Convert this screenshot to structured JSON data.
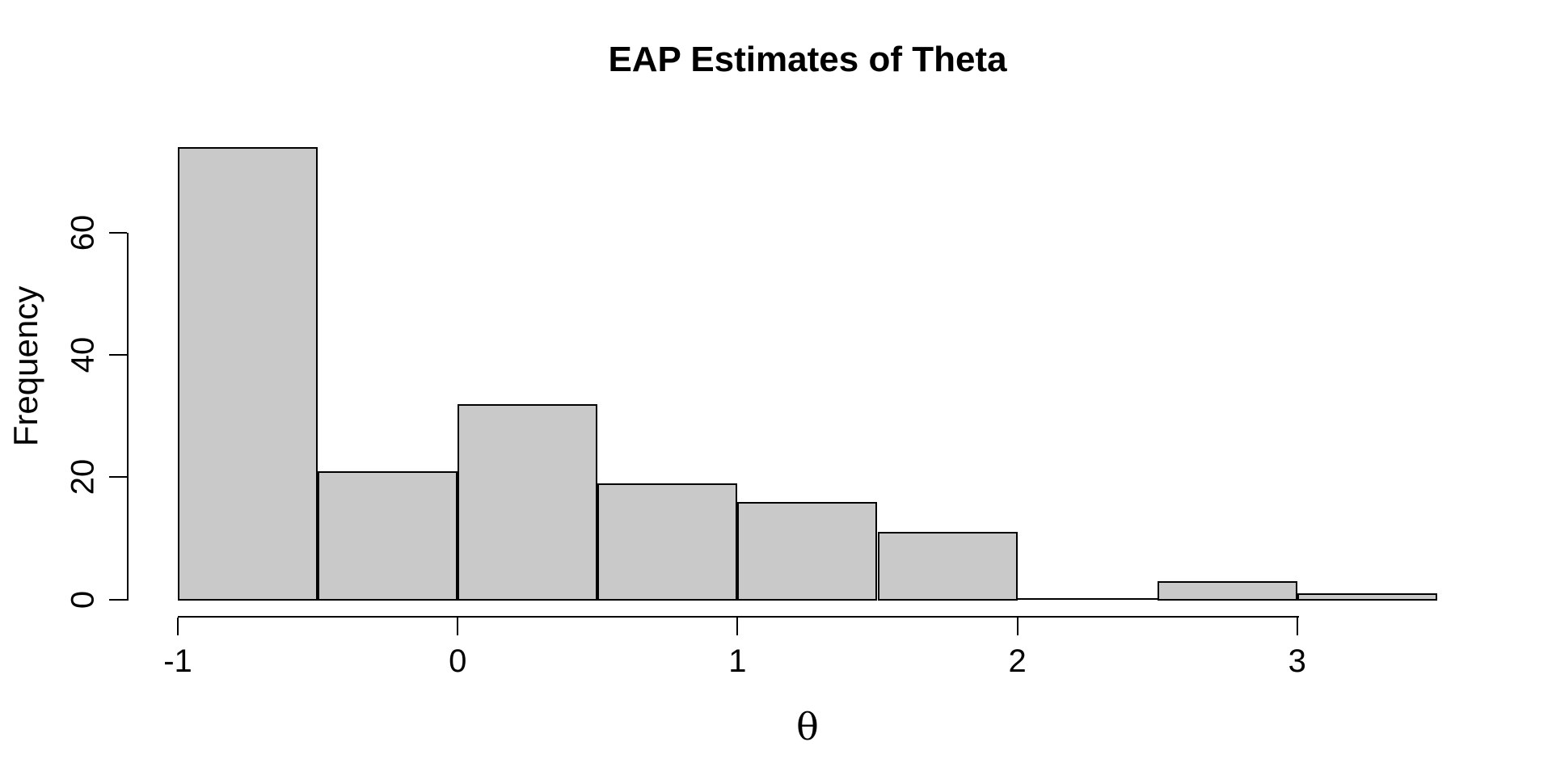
{
  "chart_data": {
    "type": "histogram",
    "title": "EAP Estimates of Theta",
    "xlabel": "θ",
    "ylabel": "Frequency",
    "bin_edges": [
      -1.0,
      -0.5,
      0.0,
      0.5,
      1.0,
      1.5,
      2.0,
      2.5,
      3.0,
      3.5
    ],
    "counts": [
      74,
      21,
      32,
      19,
      16,
      11,
      0,
      3,
      1
    ],
    "x_ticks": [
      -1,
      0,
      1,
      2,
      3
    ],
    "x_tick_labels": [
      "-1",
      "0",
      "1",
      "2",
      "3"
    ],
    "y_ticks": [
      0,
      20,
      40,
      60
    ],
    "y_tick_labels": [
      "0",
      "20",
      "40",
      "60"
    ],
    "xlim": [
      -1.0,
      3.5
    ],
    "ylim": [
      0,
      74
    ],
    "grid": false,
    "legend_position": "none",
    "bar_fill_color": "#C9C9C9",
    "bar_stroke_color": "#000000",
    "axis_color": "#000000",
    "background_color": "#FFFFFF"
  }
}
